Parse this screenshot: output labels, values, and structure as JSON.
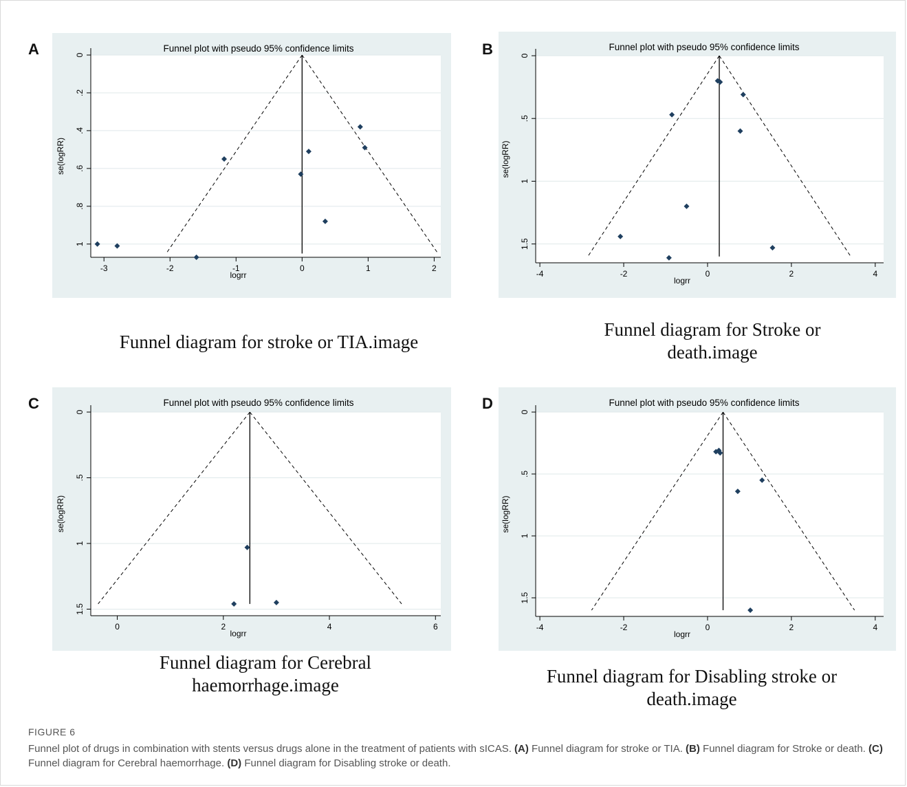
{
  "figure": {
    "label": "FIGURE 6",
    "description_intro": "Funnel plot of drugs in combination with stents versus drugs alone in the treatment of patients with sICAS.",
    "parts": [
      {
        "tag": "(A)",
        "text": "Funnel diagram for stroke or TIA."
      },
      {
        "tag": "(B)",
        "text": "Funnel diagram for Stroke or death."
      },
      {
        "tag": "(C)",
        "text": "Funnel diagram for Cerebral haemorrhage."
      },
      {
        "tag": "(D)",
        "text": "Funnel diagram for Disabling stroke or death."
      }
    ]
  },
  "panels": [
    {
      "letter": "A",
      "caption": "Funnel diagram for stroke or TIA.image"
    },
    {
      "letter": "B",
      "caption": "Funnel diagram for Stroke or death.image"
    },
    {
      "letter": "C",
      "caption": "Funnel diagram for Cerebral haemorrhage.image"
    },
    {
      "letter": "D",
      "caption": "Funnel diagram for Disabling stroke or death.image"
    }
  ],
  "colors": {
    "plot_bg": "#e8f0f1",
    "point": "#1f3f5f",
    "grid": "#ffffff",
    "line": "#000000"
  },
  "chart_data": [
    {
      "type": "scatter",
      "title": "Funnel plot with pseudo 95% confidence limits",
      "xlabel": "logrr",
      "ylabel": "se(logRR)",
      "xlim": [
        -3.2,
        2.1
      ],
      "ylim": [
        1.07,
        0
      ],
      "xticks": [
        -3,
        -2,
        -1,
        0,
        1,
        2
      ],
      "xtick_labels": [
        "-3",
        "-2",
        "-1",
        "0",
        "1",
        "2"
      ],
      "yticks": [
        0,
        0.2,
        0.4,
        0.6,
        0.8,
        1
      ],
      "ytick_labels": [
        "0",
        ".2",
        ".4",
        ".6",
        ".8",
        "1"
      ],
      "center": 0,
      "funnel_max_se": 1.05,
      "points": [
        {
          "x": -3.1,
          "y": 1.0
        },
        {
          "x": -2.8,
          "y": 1.01
        },
        {
          "x": -1.6,
          "y": 1.07
        },
        {
          "x": -1.18,
          "y": 0.55
        },
        {
          "x": -0.02,
          "y": 0.63
        },
        {
          "x": 0.1,
          "y": 0.51
        },
        {
          "x": 0.35,
          "y": 0.88
        },
        {
          "x": 0.88,
          "y": 0.38
        },
        {
          "x": 0.95,
          "y": 0.49
        }
      ]
    },
    {
      "type": "scatter",
      "title": "Funnel plot with pseudo 95% confidence limits",
      "xlabel": "logrr",
      "ylabel": "se(logRR)",
      "xlim": [
        -4.1,
        4.2
      ],
      "ylim": [
        1.65,
        0
      ],
      "xticks": [
        -4,
        -2,
        0,
        2,
        4
      ],
      "xtick_labels": [
        "-4",
        "-2",
        "0",
        "2",
        "4"
      ],
      "yticks": [
        0,
        0.5,
        1,
        1.5
      ],
      "ytick_labels": [
        "0",
        ".5",
        "1",
        "1.5"
      ],
      "center": 0.28,
      "funnel_max_se": 1.6,
      "points": [
        {
          "x": 0.24,
          "y": 0.2
        },
        {
          "x": 0.3,
          "y": 0.21
        },
        {
          "x": 0.85,
          "y": 0.31
        },
        {
          "x": -0.85,
          "y": 0.47
        },
        {
          "x": 0.78,
          "y": 0.6
        },
        {
          "x": -0.5,
          "y": 1.2
        },
        {
          "x": -2.08,
          "y": 1.44
        },
        {
          "x": 1.55,
          "y": 1.53
        },
        {
          "x": -0.92,
          "y": 1.61
        }
      ]
    },
    {
      "type": "scatter",
      "title": "Funnel plot with pseudo 95% confidence limits",
      "xlabel": "logrr",
      "ylabel": "se(logRR)",
      "xlim": [
        -0.5,
        6.1
      ],
      "ylim": [
        1.55,
        0
      ],
      "xticks": [
        0,
        2,
        4,
        6
      ],
      "xtick_labels": [
        "0",
        "2",
        "4",
        "6"
      ],
      "yticks": [
        0,
        0.5,
        1,
        1.5
      ],
      "ytick_labels": [
        "0",
        ".5",
        "1",
        "1.5"
      ],
      "center": 2.5,
      "funnel_max_se": 1.46,
      "points": [
        {
          "x": 2.45,
          "y": 1.03
        },
        {
          "x": 2.2,
          "y": 1.46
        },
        {
          "x": 3.0,
          "y": 1.45
        }
      ]
    },
    {
      "type": "scatter",
      "title": "Funnel plot with pseudo 95% confidence limits",
      "xlabel": "logrr",
      "ylabel": "se(logRR)",
      "xlim": [
        -4.1,
        4.2
      ],
      "ylim": [
        1.65,
        0
      ],
      "xticks": [
        -4,
        -2,
        0,
        2,
        4
      ],
      "xtick_labels": [
        "-4",
        "-2",
        "0",
        "2",
        "4"
      ],
      "yticks": [
        0,
        0.5,
        1,
        1.5
      ],
      "ytick_labels": [
        "0",
        ".5",
        "1",
        "1.5"
      ],
      "center": 0.37,
      "funnel_max_se": 1.6,
      "points": [
        {
          "x": 0.2,
          "y": 0.32
        },
        {
          "x": 0.27,
          "y": 0.31
        },
        {
          "x": 0.3,
          "y": 0.33
        },
        {
          "x": 1.3,
          "y": 0.55
        },
        {
          "x": 0.72,
          "y": 0.64
        },
        {
          "x": 1.02,
          "y": 1.6
        }
      ]
    }
  ]
}
